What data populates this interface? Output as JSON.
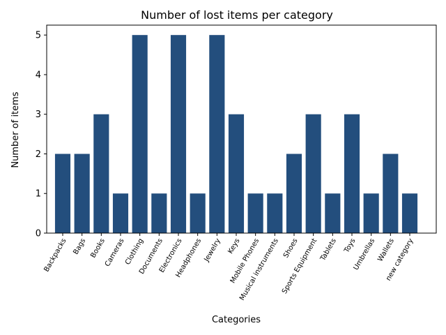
{
  "chart_data": {
    "type": "bar",
    "title": "Number of lost items per category",
    "xlabel": "Categories",
    "ylabel": "Number of items",
    "categories": [
      "Backpacks",
      "Bags",
      "Books",
      "Cameras",
      "Clothing",
      "Documents",
      "Electronics",
      "Headphones",
      "Jewelry",
      "Keys",
      "Mobile Phones",
      "Musical instruments",
      "Shoes",
      "Sports Equipment",
      "Tablets",
      "Toys",
      "Umbrellas",
      "Wallets",
      "new category"
    ],
    "values": [
      2,
      2,
      3,
      1,
      5,
      1,
      5,
      1,
      5,
      3,
      1,
      1,
      2,
      3,
      1,
      3,
      1,
      2,
      1
    ],
    "ylim": [
      0,
      5.25
    ],
    "yticks": [
      0,
      1,
      2,
      3,
      4,
      5
    ],
    "grid": false,
    "bar_color": "#234e7d"
  }
}
